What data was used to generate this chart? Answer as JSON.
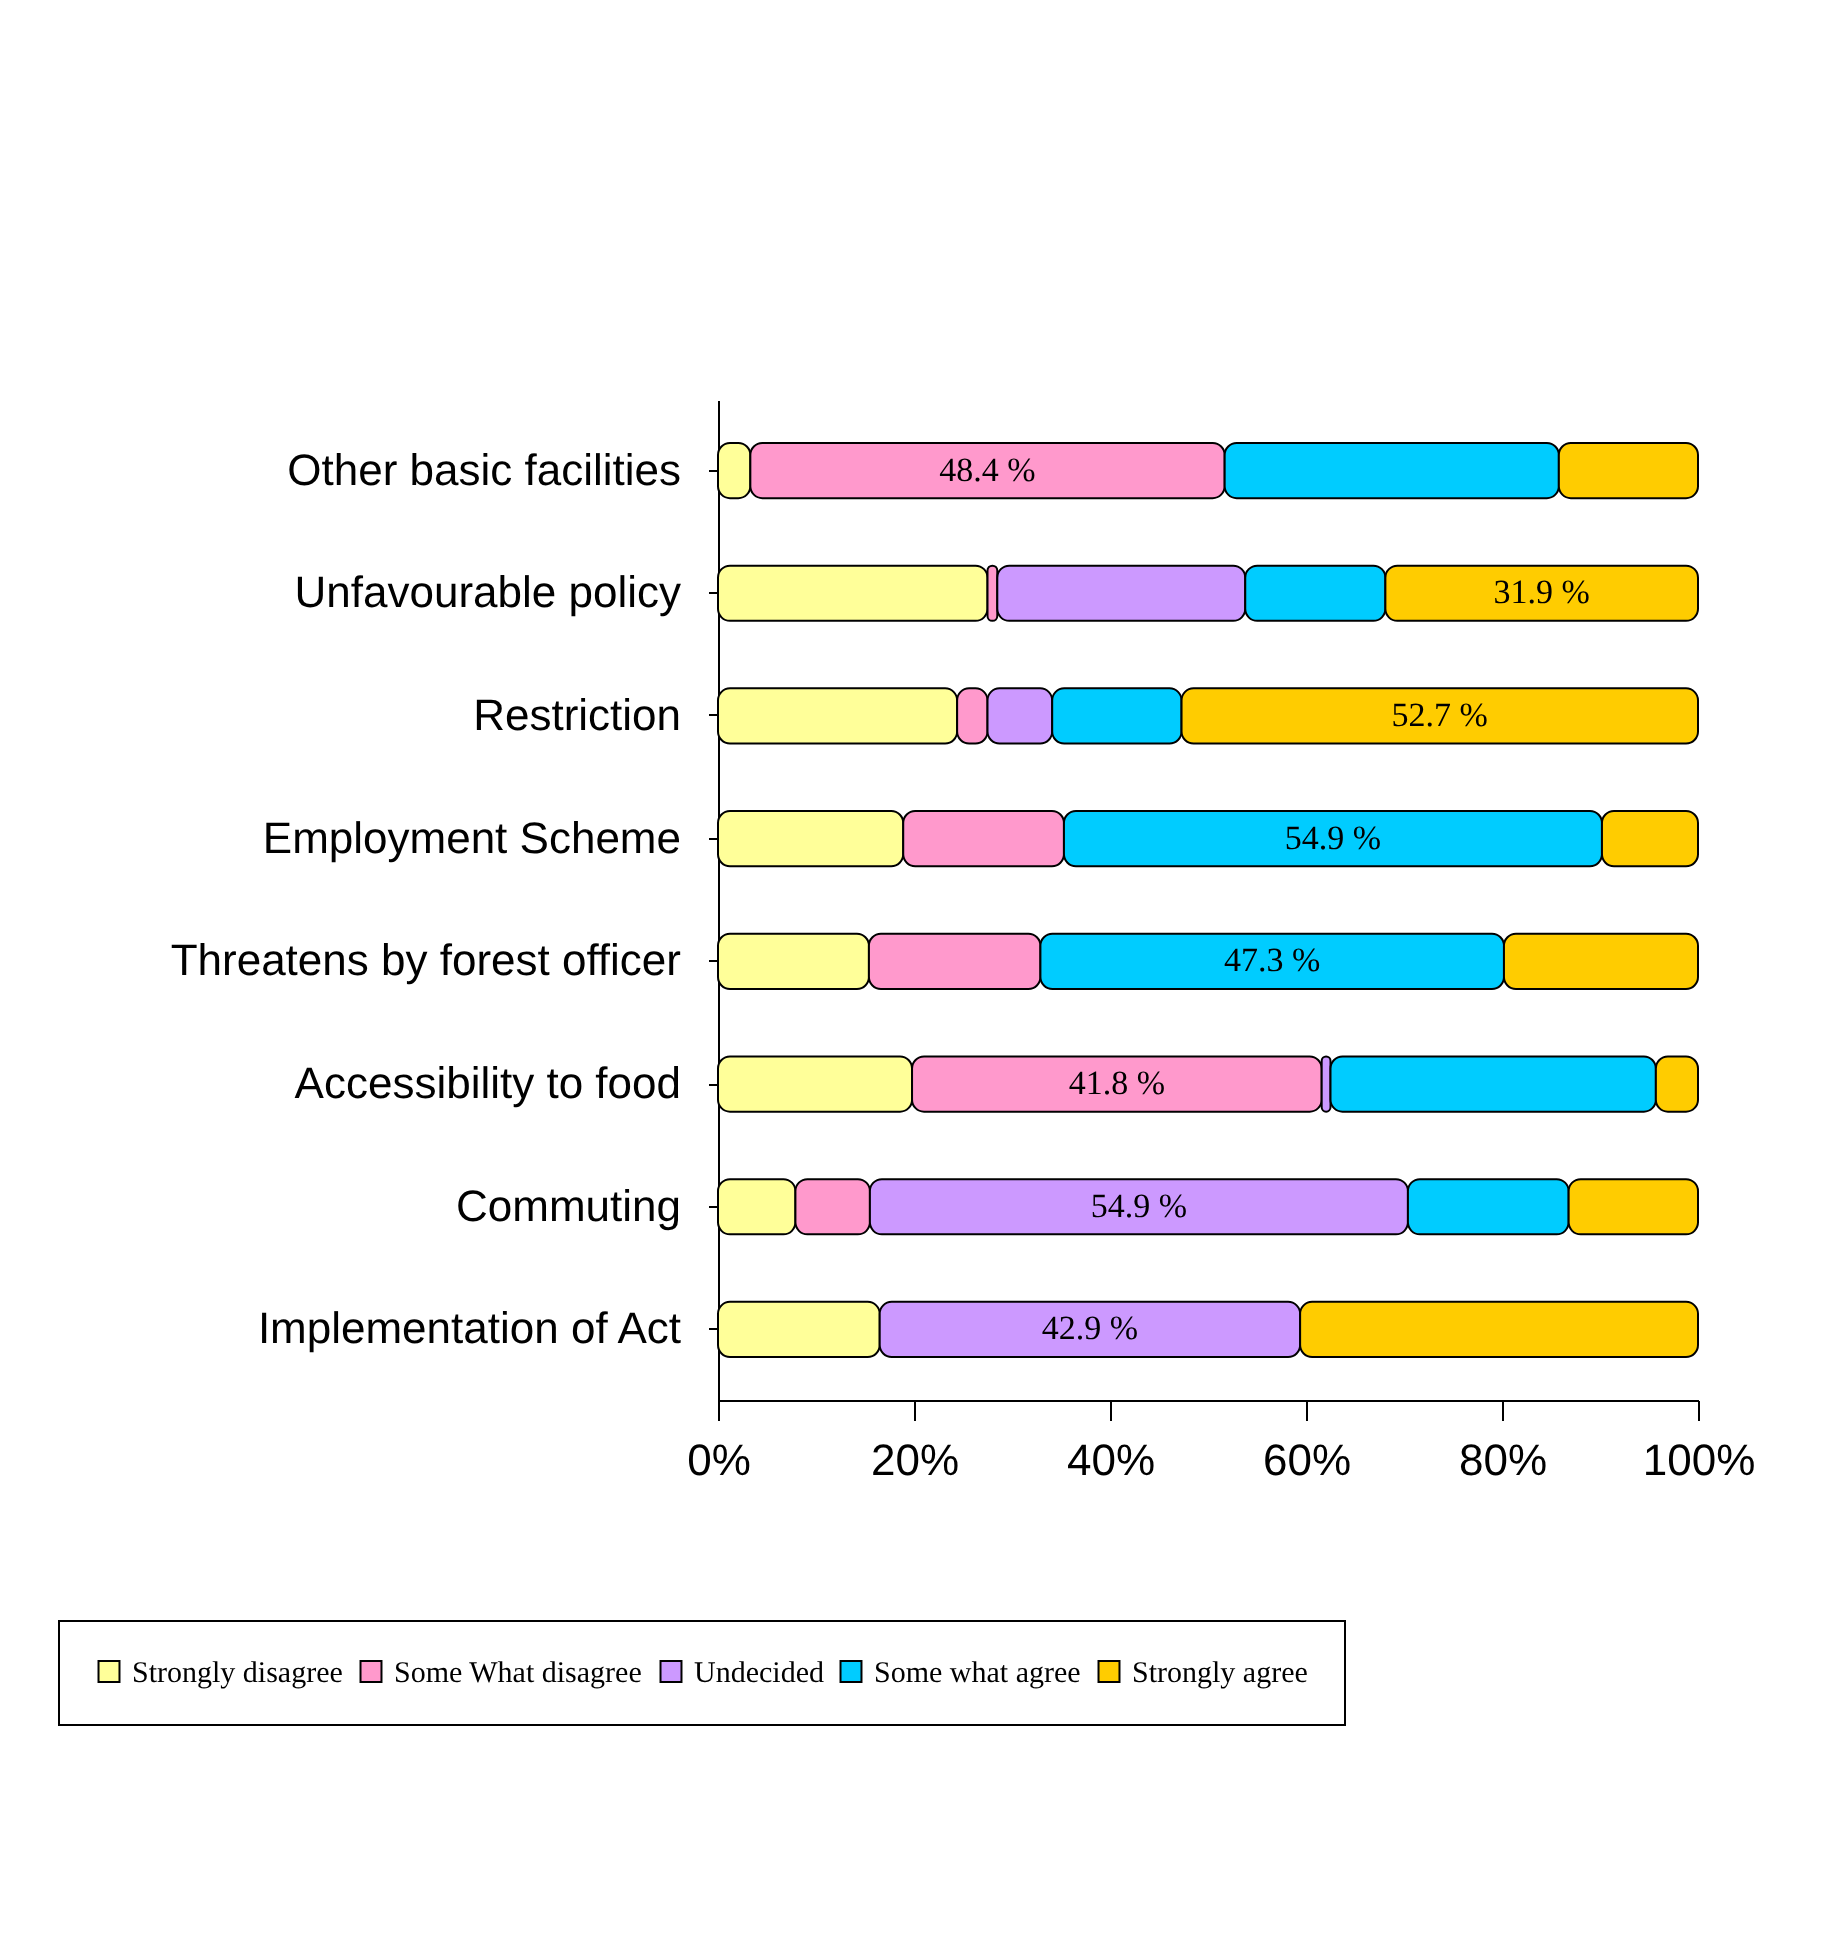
{
  "chart_data": {
    "type": "bar",
    "orientation": "horizontal",
    "stacked": true,
    "legend": "bottom",
    "grid": false,
    "categories": [
      "Other basic facilities",
      "Unfavourable policy",
      "Restriction",
      "Employment Scheme",
      "Threatens by forest officer",
      "Accessibility to food",
      "Commuting",
      "Implementation of Act"
    ],
    "xlim": [
      0,
      100
    ],
    "xticks": [
      {
        "value": 0,
        "label": "0%"
      },
      {
        "value": 20,
        "label": "20%"
      },
      {
        "value": 40,
        "label": "40%"
      },
      {
        "value": 60,
        "label": "60%"
      },
      {
        "value": 80,
        "label": "80%"
      },
      {
        "value": 100,
        "label": "100%"
      }
    ],
    "series": [
      {
        "name": "Strongly disagree",
        "color": "#ffff99",
        "values": [
          3.3,
          27.5,
          24.4,
          18.9,
          15.4,
          19.8,
          7.9,
          16.5
        ],
        "value_labels": [
          null,
          null,
          null,
          null,
          null,
          null,
          null,
          null
        ]
      },
      {
        "name": "Some What disagree",
        "color": "#ff99cc",
        "values": [
          48.4,
          1.0,
          3.1,
          16.4,
          17.5,
          41.8,
          7.6,
          0
        ],
        "value_labels": [
          "48.4 %",
          null,
          null,
          null,
          null,
          "41.8 %",
          null,
          null
        ]
      },
      {
        "name": "Undecided",
        "color": "#cc99ff",
        "values": [
          0,
          25.3,
          6.6,
          0,
          0,
          0.9,
          54.9,
          42.9
        ],
        "value_labels": [
          null,
          null,
          null,
          null,
          null,
          null,
          "54.9 %",
          "42.9 %"
        ]
      },
      {
        "name": "Some what agree",
        "color": "#00ccff",
        "values": [
          34.1,
          14.3,
          13.2,
          54.9,
          47.3,
          33.2,
          16.4,
          0
        ],
        "value_labels": [
          null,
          null,
          null,
          "54.9 %",
          "47.3 %",
          null,
          null,
          null
        ]
      },
      {
        "name": "Strongly agree",
        "color": "#ffcc00",
        "values": [
          14.2,
          31.9,
          52.7,
          9.8,
          19.8,
          4.3,
          13.2,
          40.6
        ],
        "value_labels": [
          null,
          "31.9 %",
          "52.7 %",
          null,
          null,
          null,
          null,
          null
        ]
      }
    ]
  }
}
